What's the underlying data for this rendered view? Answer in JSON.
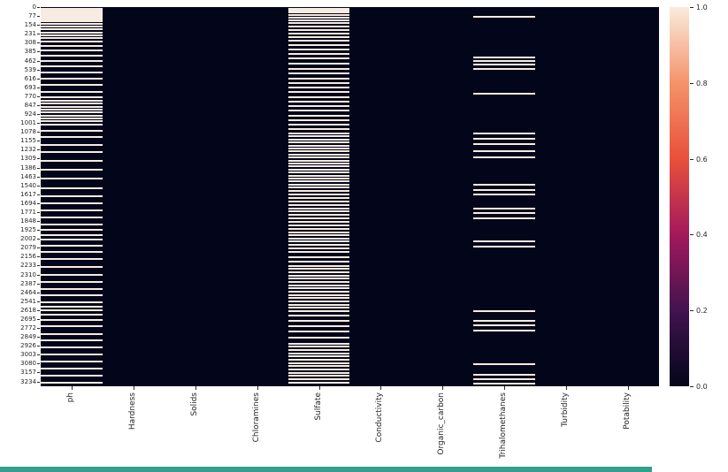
{
  "figure": {
    "background": "#FFFFFF",
    "bottom_bar_color": "#32A08C",
    "bottom_bar_width": 737
  },
  "chart_data": {
    "type": "heatmap",
    "subtype": "missing-values-matrix",
    "title": "",
    "xlabel": "",
    "ylabel": "",
    "columns": [
      "ph",
      "Hardness",
      "Solids",
      "Chloramines",
      "Sulfate",
      "Conductivity",
      "Organic_carbon",
      "Trihalomethanes",
      "Turbidity",
      "Potability"
    ],
    "n_rows": 3276,
    "y_tick_labels": [
      0,
      77,
      154,
      231,
      308,
      385,
      462,
      539,
      616,
      693,
      770,
      847,
      924,
      1001,
      1078,
      1155,
      1232,
      1309,
      1386,
      1463,
      1540,
      1617,
      1694,
      1771,
      1848,
      1925,
      2002,
      2079,
      2156,
      2233,
      2310,
      2387,
      2464,
      2541,
      2618,
      2695,
      2772,
      2849,
      2926,
      3003,
      3080,
      3157,
      3234
    ],
    "value_range": [
      0.0,
      1.0
    ],
    "colormap": "rocket",
    "colormap_stops": [
      [
        0,
        "#03051A"
      ],
      [
        0.2,
        "#42134F"
      ],
      [
        0.4,
        "#A3195C"
      ],
      [
        0.6,
        "#E8503B"
      ],
      [
        0.8,
        "#F5936B"
      ],
      [
        1,
        "#FAEBDD"
      ]
    ],
    "colorbar_tick_labels_top_to_bottom": [
      "1.0",
      "0.8",
      "0.6",
      "0.4",
      "0.2",
      "0.0"
    ],
    "cell_value_colors": {
      "present_0": "#03051A",
      "missing_1": "#F7ECE1"
    },
    "missing_row_bands": {
      "ph": [
        4,
        14,
        26,
        40,
        54,
        68,
        84,
        100,
        118,
        140,
        162,
        186,
        210,
        236,
        262,
        292,
        330,
        370,
        412,
        458,
        505,
        555,
        610,
        668,
        726,
        772,
        800,
        826,
        852,
        878,
        902,
        928,
        952,
        978,
        1010,
        1060,
        1118,
        1180,
        1248,
        1318,
        1395,
        1475,
        1555,
        1628,
        1690,
        1750,
        1812,
        1870,
        1920,
        1962,
        2004,
        2052,
        2110,
        2170,
        2240,
        2305,
        2365,
        2425,
        2485,
        2540,
        2580,
        2614,
        2648,
        2695,
        2752,
        2815,
        2875,
        2935,
        2995,
        3055,
        3115,
        3175,
        3235
      ],
      "Sulfate": [
        6,
        22,
        40,
        60,
        84,
        108,
        132,
        158,
        188,
        218,
        250,
        285,
        320,
        358,
        398,
        438,
        480,
        525,
        568,
        608,
        648,
        688,
        728,
        768,
        808,
        848,
        888,
        928,
        968,
        1008,
        1048,
        1084,
        1110,
        1136,
        1162,
        1188,
        1214,
        1240,
        1266,
        1292,
        1318,
        1344,
        1370,
        1396,
        1422,
        1448,
        1474,
        1500,
        1526,
        1552,
        1580,
        1610,
        1640,
        1670,
        1700,
        1730,
        1760,
        1790,
        1820,
        1850,
        1880,
        1910,
        1938,
        1964,
        1990,
        2016,
        2044,
        2075,
        2110,
        2150,
        2195,
        2228,
        2256,
        2284,
        2312,
        2340,
        2368,
        2396,
        2424,
        2452,
        2480,
        2508,
        2536,
        2564,
        2592,
        2622,
        2660,
        2700,
        2748,
        2798,
        2848,
        2898,
        2928,
        2956,
        2984,
        3012,
        3040,
        3068,
        3096,
        3124,
        3152,
        3180,
        3210,
        3238
      ],
      "Trihalomethanes": [
        76,
        428,
        458,
        492,
        524,
        740,
        1088,
        1130,
        1174,
        1234,
        1290,
        1528,
        1570,
        1614,
        1734,
        1774,
        1814,
        2018,
        2060,
        2618,
        2700,
        2744,
        2786,
        3078,
        3168,
        3208,
        3244
      ]
    }
  }
}
